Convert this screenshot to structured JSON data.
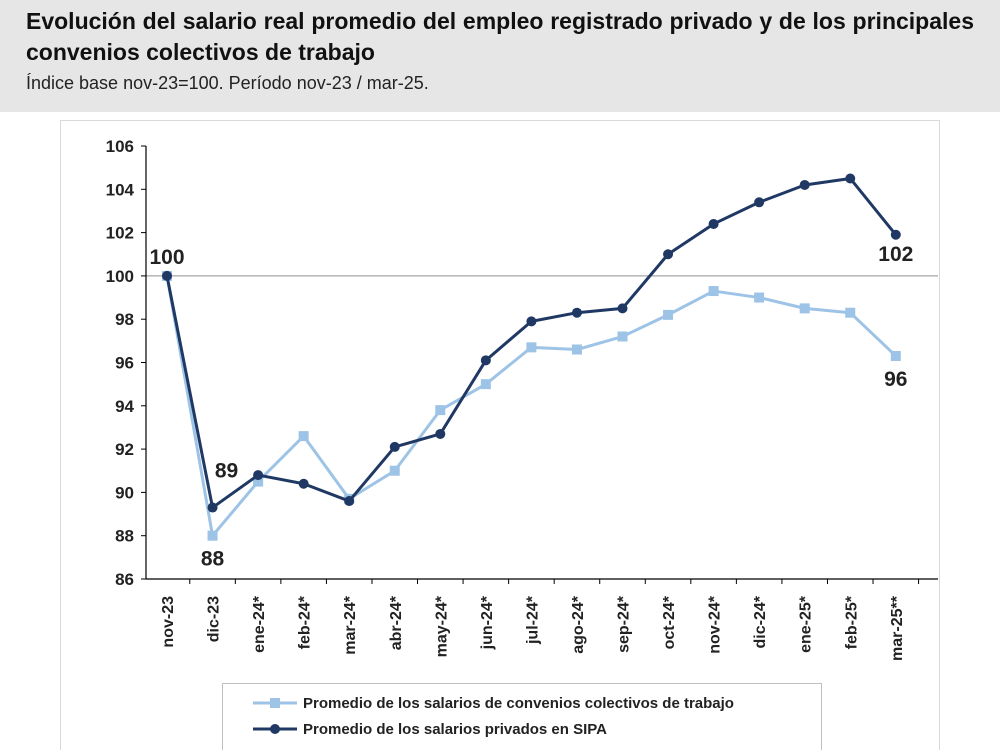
{
  "header": {
    "title": "Evolución del salario real promedio del empleo registrado privado y de los principales convenios colectivos de trabajo",
    "subtitle": "Índice base nov-23=100. Período nov-23 / mar-25."
  },
  "colors": {
    "convenios": "#9dc3e6",
    "sipa": "#1f3864",
    "baseline": "#a6a6a6",
    "axis": "#000000",
    "text": "#222222"
  },
  "chart_data": {
    "type": "line",
    "categories": [
      "nov-23",
      "dic-23",
      "ene-24*",
      "feb-24*",
      "mar-24*",
      "abr-24*",
      "may-24*",
      "jun-24*",
      "jul-24*",
      "ago-24*",
      "sep-24*",
      "oct-24*",
      "nov-24*",
      "dic-24*",
      "ene-25*",
      "feb-25*",
      "mar-25**"
    ],
    "series": [
      {
        "key": "convenios",
        "name": "Promedio de los salarios de convenios colectivos de trabajo",
        "marker": "square",
        "values": [
          100,
          88.0,
          90.5,
          92.6,
          89.7,
          91.0,
          93.8,
          95.0,
          96.7,
          96.6,
          97.2,
          98.2,
          99.3,
          99.0,
          98.5,
          98.3,
          96.3
        ]
      },
      {
        "key": "sipa",
        "name": "Promedio de los salarios privados en SIPA",
        "marker": "circle",
        "values": [
          100,
          89.3,
          90.8,
          90.4,
          89.6,
          92.1,
          92.7,
          96.1,
          97.9,
          98.3,
          98.5,
          101.0,
          102.4,
          103.4,
          104.2,
          104.5,
          101.9
        ]
      }
    ],
    "yticks": [
      86,
      88,
      90,
      92,
      94,
      96,
      98,
      100,
      102,
      104,
      106
    ],
    "ylim": [
      86,
      106
    ],
    "reference_line": 100,
    "grid": false,
    "legend_position": "bottom",
    "annotations": [
      {
        "text": "100",
        "category": "nov-23",
        "series": "sipa"
      },
      {
        "text": "89",
        "category": "dic-23",
        "series": "sipa"
      },
      {
        "text": "88",
        "category": "dic-23",
        "series": "convenios"
      },
      {
        "text": "102",
        "category": "mar-25**",
        "series": "sipa"
      },
      {
        "text": "96",
        "category": "mar-25**",
        "series": "convenios"
      }
    ]
  }
}
